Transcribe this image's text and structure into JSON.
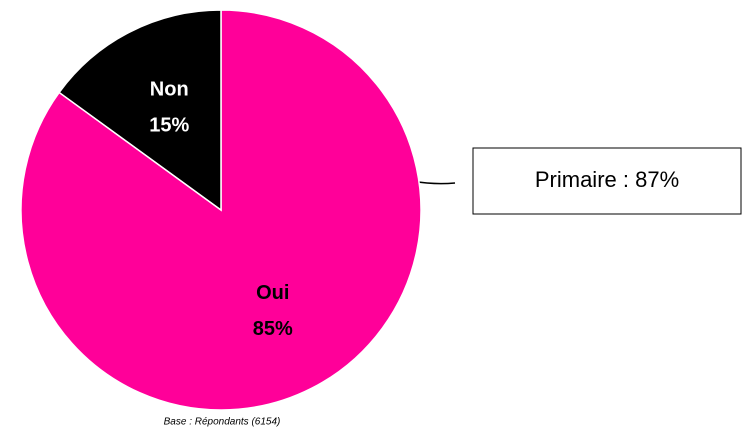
{
  "chart_data": {
    "type": "pie",
    "categories": [
      "Oui",
      "Non"
    ],
    "values": [
      85,
      15
    ],
    "value_labels": [
      "85%",
      "15%"
    ],
    "colors": [
      "#ff0099",
      "#000000"
    ],
    "label_colors": [
      "#000000",
      "#ffffff"
    ],
    "annotation": "Primaire : 87%",
    "footnote": "Base : Répondants (6154)"
  }
}
